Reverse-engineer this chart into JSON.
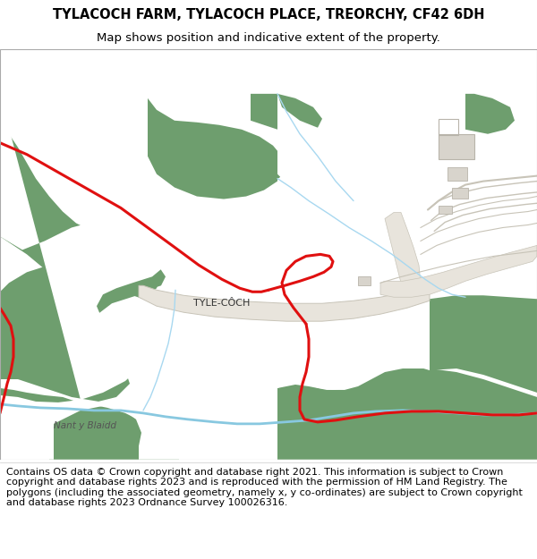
{
  "title_line1": "TYLACOCH FARM, TYLACOCH PLACE, TREORCHY, CF42 6DH",
  "title_line2": "Map shows position and indicative extent of the property.",
  "footer_text": "Contains OS data © Crown copyright and database right 2021. This information is subject to Crown copyright and database rights 2023 and is reproduced with the permission of HM Land Registry. The polygons (including the associated geometry, namely x, y co-ordinates) are subject to Crown copyright and database rights 2023 Ordnance Survey 100026316.",
  "bg_color": "#f2f0ec",
  "green_main": "#6e9e6e",
  "white_field": "#ffffff",
  "road_color": "#e8e4dc",
  "road_edge": "#c8c4b8",
  "red_line": "#e01010",
  "blue_stream": "#88c8e0",
  "building_fill": "#d8d4cc",
  "building_edge": "#b8b4aa",
  "label_tyle": "TYLE-CÔCH",
  "label_nant": "Nant y Blaidd",
  "title_fontsize": 10.5,
  "subtitle_fontsize": 9.5,
  "footer_fontsize": 8.0
}
